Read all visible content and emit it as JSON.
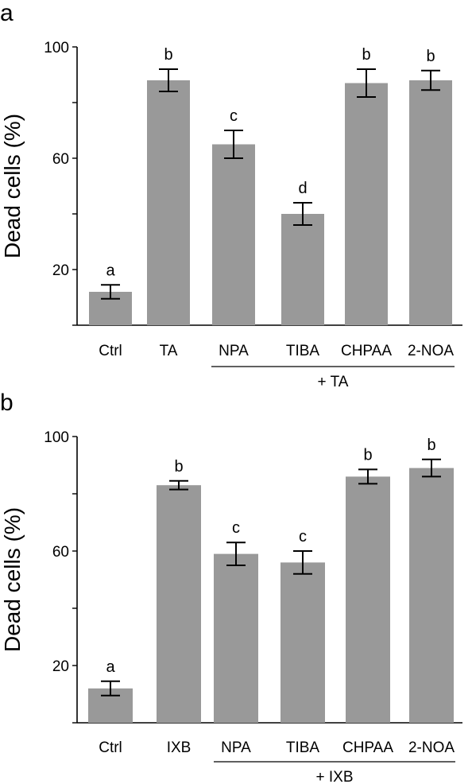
{
  "colors": {
    "bar": "#999999",
    "axis": "#000000"
  },
  "chart_data": [
    {
      "type": "bar",
      "panel_label": "a",
      "ylabel": "Dead cells (%)",
      "ylim": [
        0,
        100
      ],
      "yticks": [
        20,
        60,
        100
      ],
      "categories": [
        "Ctrl",
        "TA",
        "NPA",
        "TIBA",
        "CHPAA",
        "2-NOA"
      ],
      "values": [
        12,
        88,
        65,
        40,
        87,
        88
      ],
      "errors": [
        2.5,
        4,
        5,
        4,
        5,
        3.5
      ],
      "significance": [
        "a",
        "b",
        "c",
        "d",
        "b",
        "b"
      ],
      "group": {
        "label": "+ TA",
        "from": 2,
        "to": 5
      },
      "grid": false
    },
    {
      "type": "bar",
      "panel_label": "b",
      "ylabel": "Dead cells (%)",
      "ylim": [
        0,
        100
      ],
      "yticks": [
        20,
        60,
        100
      ],
      "categories": [
        "Ctrl",
        "IXB",
        "NPA",
        "TIBA",
        "CHPAA",
        "2-NOA"
      ],
      "values": [
        12,
        83,
        59,
        56,
        86,
        89
      ],
      "errors": [
        2.5,
        1.5,
        4,
        4,
        2.5,
        3
      ],
      "significance": [
        "a",
        "b",
        "c",
        "c",
        "b",
        "b"
      ],
      "group": {
        "label": "+ IXB",
        "from": 2,
        "to": 5
      },
      "grid": false
    }
  ]
}
